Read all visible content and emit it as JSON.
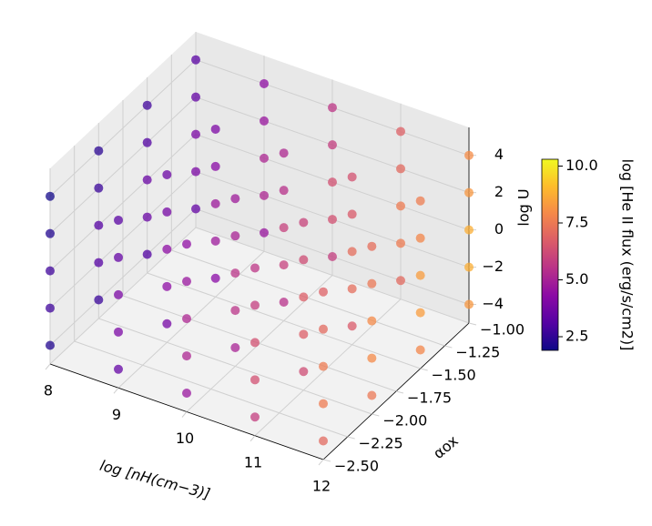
{
  "chart_data": {
    "type": "scatter3d",
    "xlabel": "log  [nH(cm−3)]",
    "ylabel": "αox",
    "zlabel": "log U",
    "colorbar_label": "log [He II flux (erg/s/cm2)]",
    "xlim": [
      8,
      12
    ],
    "ylim": [
      -2.5,
      -1.0
    ],
    "zlim": [
      -5,
      5.5
    ],
    "clim": [
      1.9,
      10.3
    ],
    "xticks": [
      8,
      9,
      10,
      11,
      12
    ],
    "yticks": [
      {
        "value": -2.5,
        "label": "−2.50"
      },
      {
        "value": -2.25,
        "label": "−2.25"
      },
      {
        "value": -2.0,
        "label": "−2.00"
      },
      {
        "value": -1.75,
        "label": "−1.75"
      },
      {
        "value": -1.5,
        "label": "−1.50"
      },
      {
        "value": -1.25,
        "label": "−1.25"
      },
      {
        "value": -1.0,
        "label": "−1.00"
      }
    ],
    "zticks": [
      {
        "value": -4,
        "label": "−4"
      },
      {
        "value": -2,
        "label": "−2"
      },
      0,
      2,
      4
    ],
    "cticks": [
      {
        "value": 2.5,
        "label": "2.5"
      },
      {
        "value": 5,
        "label": "5.0"
      },
      {
        "value": 7.5,
        "label": "7.5"
      },
      {
        "value": 10,
        "label": "10.0"
      }
    ],
    "colormap": "plasma",
    "grid": true,
    "x": [
      8,
      8,
      8,
      8,
      8,
      8,
      8,
      8,
      8,
      8,
      8,
      8,
      8,
      8,
      8,
      8,
      8,
      8,
      8,
      8,
      9,
      9,
      9,
      9,
      9,
      9,
      9,
      9,
      9,
      9,
      9,
      9,
      9,
      9,
      9,
      9,
      9,
      9,
      9,
      9,
      10,
      10,
      10,
      10,
      10,
      10,
      10,
      10,
      10,
      10,
      10,
      10,
      10,
      10,
      10,
      10,
      10,
      10,
      10,
      10,
      11,
      11,
      11,
      11,
      11,
      11,
      11,
      11,
      11,
      11,
      11,
      11,
      11,
      11,
      11,
      11,
      11,
      11,
      11,
      11,
      12,
      12,
      12,
      12,
      12,
      12,
      12,
      12,
      12,
      12,
      12,
      12,
      12,
      12,
      12,
      12,
      12,
      12,
      12,
      12
    ],
    "y": [
      -2.5,
      -2.5,
      -2.5,
      -2.5,
      -2.5,
      -2.0,
      -2.0,
      -2.0,
      -2.0,
      -2.0,
      -1.5,
      -1.5,
      -1.5,
      -1.5,
      -1.5,
      -1.0,
      -1.0,
      -1.0,
      -1.0,
      -1.0,
      -2.5,
      -2.5,
      -2.5,
      -2.5,
      -2.5,
      -2.0,
      -2.0,
      -2.0,
      -2.0,
      -2.0,
      -1.5,
      -1.5,
      -1.5,
      -1.5,
      -1.5,
      -1.0,
      -1.0,
      -1.0,
      -1.0,
      -1.0,
      -2.5,
      -2.5,
      -2.5,
      -2.5,
      -2.5,
      -2.0,
      -2.0,
      -2.0,
      -2.0,
      -2.0,
      -1.5,
      -1.5,
      -1.5,
      -1.5,
      -1.5,
      -1.0,
      -1.0,
      -1.0,
      -1.0,
      -1.0,
      -2.5,
      -2.5,
      -2.5,
      -2.5,
      -2.5,
      -2.0,
      -2.0,
      -2.0,
      -2.0,
      -2.0,
      -1.5,
      -1.5,
      -1.5,
      -1.5,
      -1.5,
      -1.0,
      -1.0,
      -1.0,
      -1.0,
      -1.0,
      -2.5,
      -2.5,
      -2.5,
      -2.5,
      -2.5,
      -2.0,
      -2.0,
      -2.0,
      -2.0,
      -2.0,
      -1.5,
      -1.5,
      -1.5,
      -1.5,
      -1.5,
      -1.0,
      -1.0,
      -1.0,
      -1.0,
      -1.0
    ],
    "z": [
      -4,
      -2,
      0,
      2,
      4,
      -4,
      -2,
      0,
      2,
      4,
      -4,
      -2,
      0,
      2,
      4,
      -4,
      -2,
      0,
      2,
      4,
      -4,
      -2,
      0,
      2,
      4,
      -4,
      -2,
      0,
      2,
      4,
      -4,
      -2,
      0,
      2,
      4,
      -4,
      -2,
      0,
      2,
      4,
      -4,
      -2,
      0,
      2,
      4,
      -4,
      -2,
      0,
      2,
      4,
      -4,
      -2,
      0,
      2,
      4,
      -4,
      -2,
      0,
      2,
      4,
      -4,
      -2,
      0,
      2,
      4,
      -4,
      -2,
      0,
      2,
      4,
      -4,
      -2,
      0,
      2,
      4,
      -4,
      -2,
      0,
      2,
      4,
      -4,
      -2,
      0,
      2,
      4,
      -4,
      -2,
      0,
      2,
      4,
      -4,
      -2,
      0,
      2,
      4,
      -4,
      -2,
      0,
      2,
      4
    ],
    "c": [
      2.25,
      2.75,
      2.75,
      2.25,
      2.0,
      2.65,
      3.15,
      3.15,
      2.65,
      2.4,
      3.05,
      3.55,
      3.55,
      3.05,
      2.8,
      3.45,
      3.95,
      3.95,
      3.45,
      3.2,
      3.45,
      3.95,
      3.95,
      3.45,
      3.2,
      3.85,
      4.35,
      4.35,
      3.85,
      3.6,
      4.25,
      4.75,
      4.75,
      4.25,
      4.0,
      4.65,
      5.15,
      5.15,
      4.65,
      4.4,
      4.65,
      5.15,
      5.15,
      4.65,
      4.4,
      5.05,
      5.55,
      5.55,
      5.05,
      4.8,
      5.45,
      5.95,
      5.95,
      5.45,
      5.2,
      5.85,
      6.35,
      6.35,
      5.85,
      5.6,
      5.85,
      6.35,
      6.35,
      5.85,
      5.6,
      6.25,
      6.75,
      6.75,
      6.25,
      6.0,
      6.65,
      7.15,
      7.15,
      6.65,
      6.4,
      7.05,
      7.55,
      7.55,
      7.05,
      6.8,
      7.05,
      7.55,
      7.55,
      7.05,
      6.8,
      7.45,
      7.95,
      7.95,
      7.45,
      7.2,
      7.85,
      8.35,
      8.35,
      7.85,
      7.6,
      8.25,
      8.75,
      8.75,
      8.25,
      8.0
    ]
  }
}
